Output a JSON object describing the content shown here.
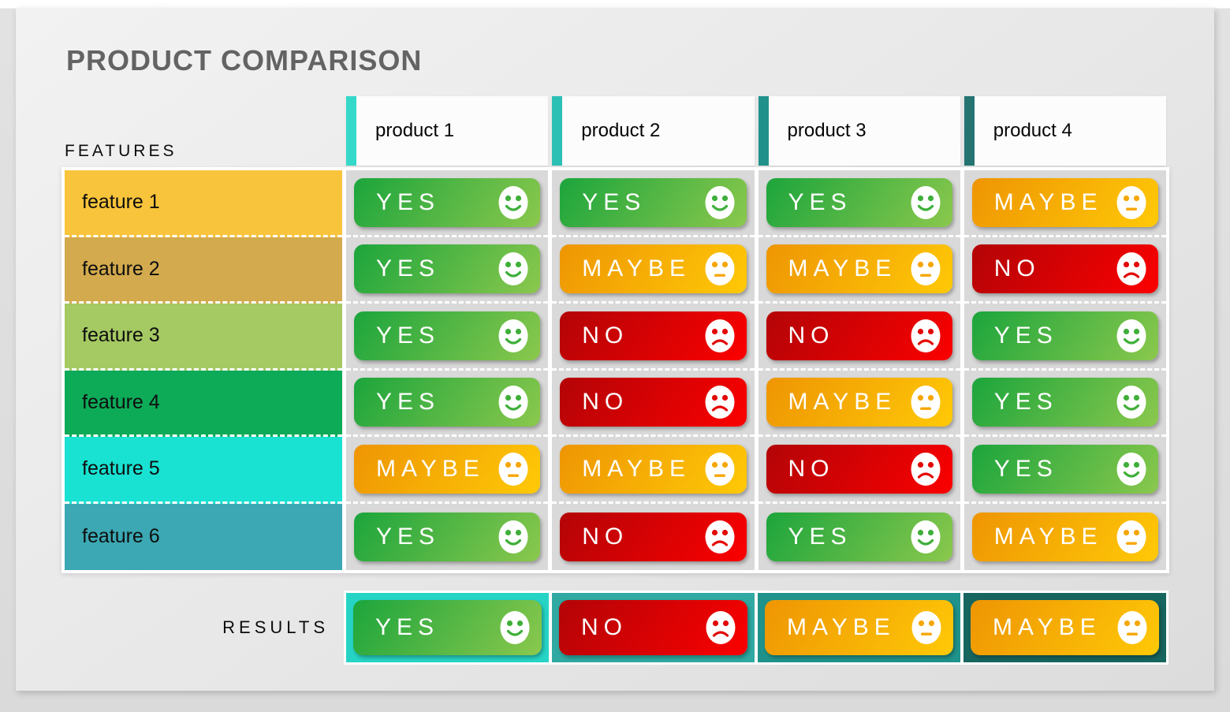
{
  "title": "PRODUCT COMPARISON",
  "features_label": "FEATURES",
  "results_label": "RESULTS",
  "products": [
    {
      "name": "product 1",
      "accent": "#35D9C9",
      "result_bg": "#26D4C5"
    },
    {
      "name": "product 2",
      "accent": "#2CBFB4",
      "result_bg": "#2FA9A1"
    },
    {
      "name": "product 3",
      "accent": "#21928B",
      "result_bg": "#1F938B"
    },
    {
      "name": "product 4",
      "accent": "#257471",
      "result_bg": "#17655F"
    }
  ],
  "features": [
    {
      "name": "feature 1",
      "color": "#F8C43B"
    },
    {
      "name": "feature 2",
      "color": "#D3AA4D"
    },
    {
      "name": "feature 3",
      "color": "#A5C963"
    },
    {
      "name": "feature 4",
      "color": "#0DAA58"
    },
    {
      "name": "feature 5",
      "color": "#19E2D2"
    },
    {
      "name": "feature 6",
      "color": "#3BA8B3"
    }
  ],
  "matrix": [
    [
      "YES",
      "YES",
      "YES",
      "MAYBE"
    ],
    [
      "YES",
      "MAYBE",
      "MAYBE",
      "NO"
    ],
    [
      "YES",
      "NO",
      "NO",
      "YES"
    ],
    [
      "YES",
      "NO",
      "MAYBE",
      "YES"
    ],
    [
      "MAYBE",
      "MAYBE",
      "NO",
      "YES"
    ],
    [
      "YES",
      "NO",
      "YES",
      "MAYBE"
    ]
  ],
  "results": [
    "YES",
    "NO",
    "MAYBE",
    "MAYBE"
  ],
  "badge_styles": {
    "YES": {
      "gradient": [
        "#1CA53C",
        "#8BC84D"
      ],
      "icon_color": "#3FAF3A",
      "face": "smiley"
    },
    "MAYBE": {
      "gradient": [
        "#EE9503",
        "#FFC907"
      ],
      "icon_color": "#F6A604",
      "face": "neutral"
    },
    "NO": {
      "gradient": [
        "#B30407",
        "#FB0000"
      ],
      "icon_color": "#E30505",
      "face": "sad"
    }
  }
}
